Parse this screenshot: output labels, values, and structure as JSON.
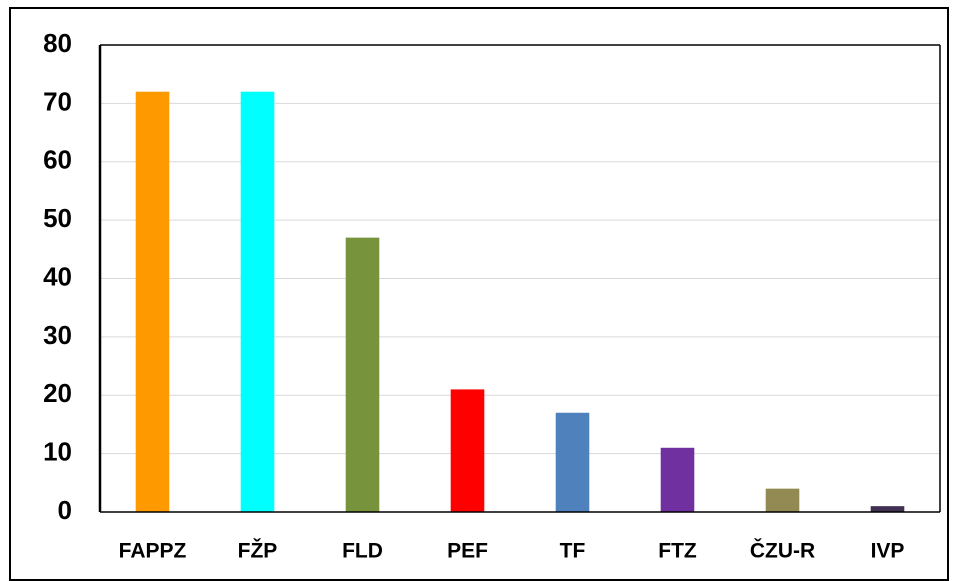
{
  "chart_data": {
    "type": "bar",
    "categories": [
      "FAPPZ",
      "FŽP",
      "FLD",
      "PEF",
      "TF",
      "FTZ",
      "ČZU-R",
      "IVP"
    ],
    "values": [
      72,
      72,
      47,
      21,
      17,
      11,
      4,
      1
    ],
    "colors": [
      "#ff9900",
      "#00ffff",
      "#77933c",
      "#ff0000",
      "#4f81bd",
      "#7030a0",
      "#938953",
      "#403152"
    ],
    "ylim": [
      0,
      80
    ],
    "yticks": [
      0,
      10,
      20,
      30,
      40,
      50,
      60,
      70,
      80
    ],
    "grid": true
  }
}
